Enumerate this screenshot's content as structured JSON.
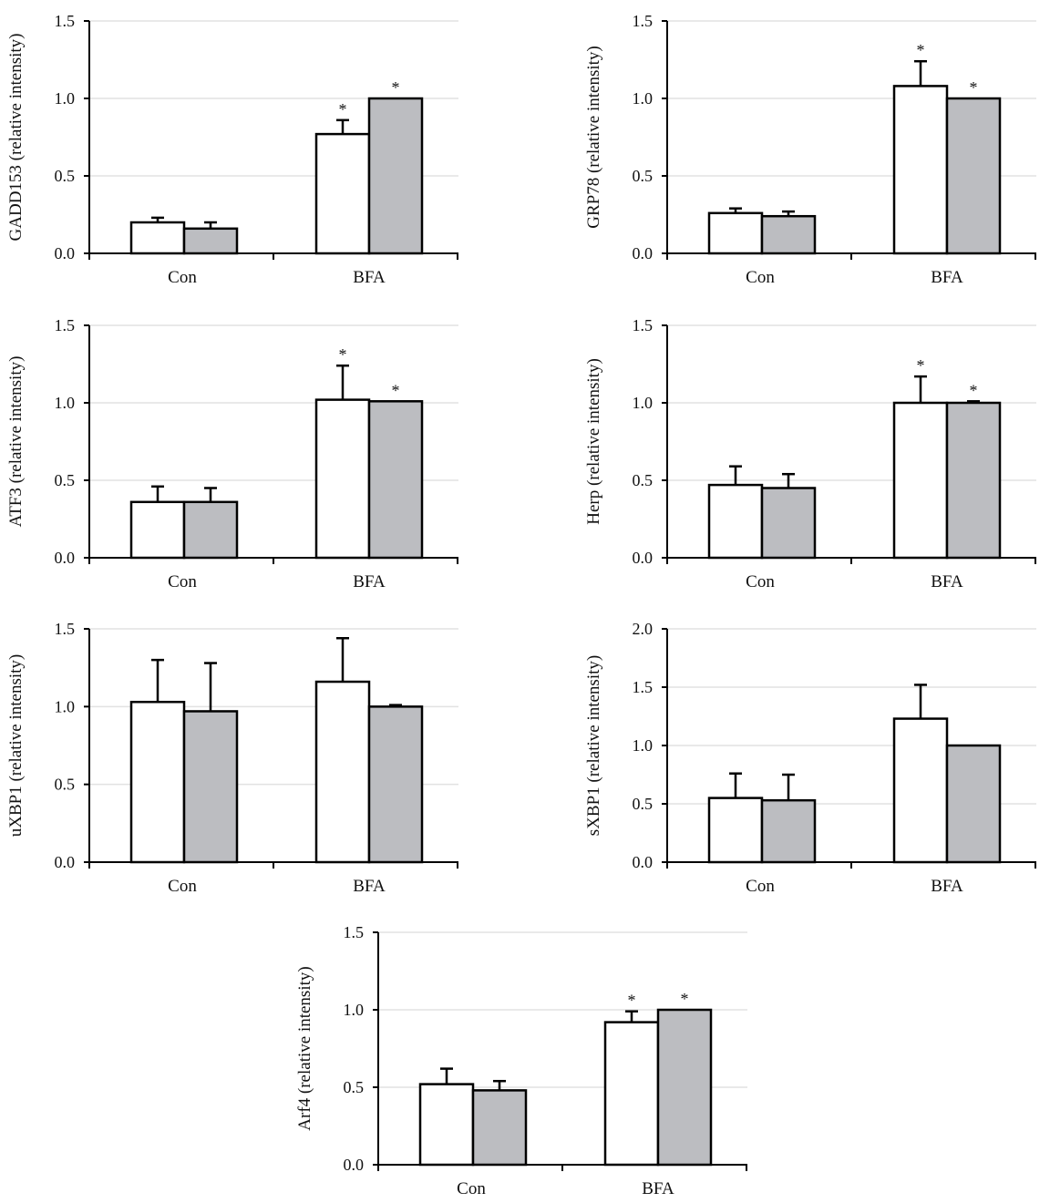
{
  "colors": {
    "series_fill": [
      "#ffffff",
      "#bcbdc1"
    ],
    "outline": "#000000",
    "grid": "#e2e2e2"
  },
  "chart_data": [
    {
      "type": "bar",
      "ylabel": "GADD153 (relative intensity)",
      "categories": [
        "Con",
        "BFA"
      ],
      "ylim": [
        0,
        1.5
      ],
      "yticks": [
        "0.0",
        "0.5",
        "1.0",
        "1.5"
      ],
      "grid": true,
      "series": [
        {
          "values": [
            0.2,
            0.77
          ],
          "errors": [
            0.03,
            0.09
          ]
        },
        {
          "values": [
            0.16,
            1.0
          ],
          "errors": [
            0.04,
            0
          ]
        }
      ],
      "significance": [
        [
          "",
          "*"
        ],
        [
          "",
          "*"
        ]
      ]
    },
    {
      "type": "bar",
      "ylabel": "GRP78 (relative intensity)",
      "categories": [
        "Con",
        "BFA"
      ],
      "ylim": [
        0,
        1.5
      ],
      "yticks": [
        "0.0",
        "0.5",
        "1.0",
        "1.5"
      ],
      "grid": true,
      "series": [
        {
          "values": [
            0.26,
            1.08
          ],
          "errors": [
            0.03,
            0.16
          ]
        },
        {
          "values": [
            0.24,
            1.0
          ],
          "errors": [
            0.03,
            0
          ]
        }
      ],
      "significance": [
        [
          "",
          "*"
        ],
        [
          "",
          "*"
        ]
      ]
    },
    {
      "type": "bar",
      "ylabel": "ATF3 (relative intensity)",
      "categories": [
        "Con",
        "BFA"
      ],
      "ylim": [
        0,
        1.5
      ],
      "yticks": [
        "0.0",
        "0.5",
        "1.0",
        "1.5"
      ],
      "grid": true,
      "series": [
        {
          "values": [
            0.36,
            1.02
          ],
          "errors": [
            0.1,
            0.22
          ]
        },
        {
          "values": [
            0.36,
            1.01
          ],
          "errors": [
            0.09,
            0
          ]
        }
      ],
      "significance": [
        [
          "",
          "*"
        ],
        [
          "",
          "*"
        ]
      ]
    },
    {
      "type": "bar",
      "ylabel": "Herp (relative intensity)",
      "categories": [
        "Con",
        "BFA"
      ],
      "ylim": [
        0,
        1.5
      ],
      "yticks": [
        "0.0",
        "0.5",
        "1.0",
        "1.5"
      ],
      "grid": true,
      "series": [
        {
          "values": [
            0.47,
            1.0
          ],
          "errors": [
            0.12,
            0.17
          ]
        },
        {
          "values": [
            0.45,
            1.0
          ],
          "errors": [
            0.09,
            0.01
          ]
        }
      ],
      "significance": [
        [
          "",
          "*"
        ],
        [
          "",
          "*"
        ]
      ]
    },
    {
      "type": "bar",
      "ylabel": "uXBP1 (relative intensity)",
      "categories": [
        "Con",
        "BFA"
      ],
      "ylim": [
        0,
        1.5
      ],
      "yticks": [
        "0.0",
        "0.5",
        "1.0",
        "1.5"
      ],
      "grid": true,
      "series": [
        {
          "values": [
            1.03,
            1.16
          ],
          "errors": [
            0.27,
            0.28
          ]
        },
        {
          "values": [
            0.97,
            1.0
          ],
          "errors": [
            0.31,
            0.01
          ]
        }
      ],
      "significance": [
        [
          "",
          ""
        ],
        [
          "",
          ""
        ]
      ]
    },
    {
      "type": "bar",
      "ylabel": "sXBP1 (relative intensity)",
      "categories": [
        "Con",
        "BFA"
      ],
      "ylim": [
        0,
        2.0
      ],
      "yticks": [
        "0.0",
        "0.5",
        "1.0",
        "1.5",
        "2.0"
      ],
      "grid": true,
      "series": [
        {
          "values": [
            0.55,
            1.23
          ],
          "errors": [
            0.21,
            0.29
          ]
        },
        {
          "values": [
            0.53,
            1.0
          ],
          "errors": [
            0.22,
            0
          ]
        }
      ],
      "significance": [
        [
          "",
          ""
        ],
        [
          "",
          ""
        ]
      ]
    },
    {
      "type": "bar",
      "ylabel": "Arf4 (relative intensity)",
      "categories": [
        "Con",
        "BFA"
      ],
      "ylim": [
        0,
        1.5
      ],
      "yticks": [
        "0.0",
        "0.5",
        "1.0",
        "1.5"
      ],
      "grid": true,
      "series": [
        {
          "values": [
            0.52,
            0.92
          ],
          "errors": [
            0.1,
            0.07
          ]
        },
        {
          "values": [
            0.48,
            1.0
          ],
          "errors": [
            0.06,
            0
          ]
        }
      ],
      "significance": [
        [
          "",
          "*"
        ],
        [
          "",
          "*"
        ]
      ]
    }
  ]
}
